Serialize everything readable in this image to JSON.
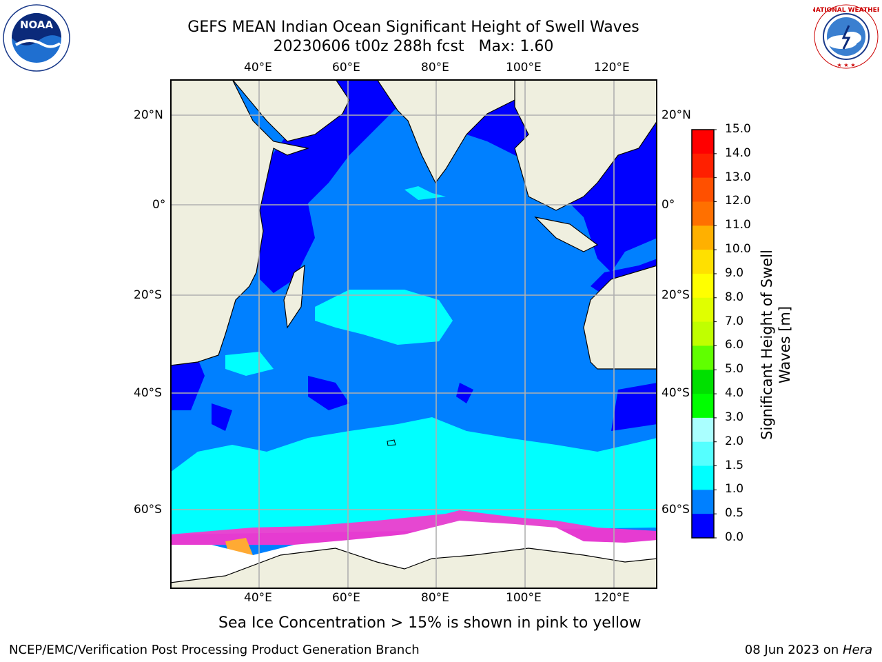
{
  "title": {
    "line1": "GEFS MEAN Indian Ocean Significant Height of Swell Waves",
    "line2": "20230606 t00z 288h fcst   Max: 1.60"
  },
  "logos": {
    "left": {
      "name": "noaa-logo",
      "text": "NOAA",
      "ring_text": "NATIONAL OCEANIC AND ATMOSPHERIC ADMINISTRATION · U.S. DEPARTMENT OF COMMERCE"
    },
    "right": {
      "name": "national-weather-service-logo",
      "ring_text": "NATIONAL WEATHER SERVICE"
    }
  },
  "map": {
    "lon_ticks": [
      "40°E",
      "60°E",
      "80°E",
      "100°E",
      "120°E"
    ],
    "lat_ticks": [
      "20°N",
      "0°",
      "20°S",
      "40°S",
      "60°S"
    ],
    "colors": {
      "land": "#efefdf",
      "ice": "#ffffff",
      "band_0_0_5": "#0000ff",
      "band_0_5_1_0": "#0080ff",
      "band_1_0_1_5": "#00ffff",
      "sea_ice_edge": [
        "#ff33cc",
        "#ff88ee",
        "#ffcc00"
      ]
    }
  },
  "colorbar": {
    "label_line1": "Significant Height of Swell",
    "label_line2": "Waves [m]",
    "ticks": [
      "15.0",
      "14.0",
      "13.0",
      "12.0",
      "11.0",
      "10.0",
      "9.0",
      "8.0",
      "7.0",
      "6.0",
      "5.0",
      "4.0",
      "3.0",
      "2.0",
      "1.5",
      "1.0",
      "0.5",
      "0.0"
    ],
    "colors": [
      "#ff0000",
      "#ff2000",
      "#ff5000",
      "#ff7000",
      "#ff9000",
      "#ffb000",
      "#ffe000",
      "#ffff00",
      "#e0ff00",
      "#c0ff00",
      "#60ff00",
      "#00e000",
      "#00ff00",
      "#55ff88",
      "#aaffff",
      "#55ffff",
      "#00ffff",
      "#0080ff",
      "#0000ff"
    ]
  },
  "caption": "Sea Ice Concentration > 15% is shown in pink to yellow",
  "footer": {
    "left": "NCEP/EMC/Verification Post Processing Product Generation Branch",
    "right_prefix": "08 Jun 2023 on ",
    "right_host": "Hera"
  }
}
